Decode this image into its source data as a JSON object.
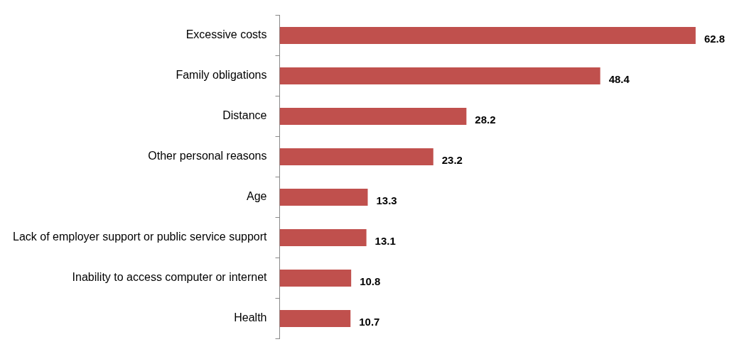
{
  "chart_data": {
    "type": "bar",
    "orientation": "horizontal",
    "categories": [
      "Excessive costs",
      "Family obligations",
      "Distance",
      "Other personal reasons",
      "Age",
      "Lack of employer support or public service support",
      "Inability to access computer or internet",
      "Health"
    ],
    "values": [
      62.8,
      48.4,
      28.2,
      23.2,
      13.3,
      13.1,
      10.8,
      10.7
    ],
    "color": "#c0504d",
    "data_labels": true,
    "legend": false
  }
}
